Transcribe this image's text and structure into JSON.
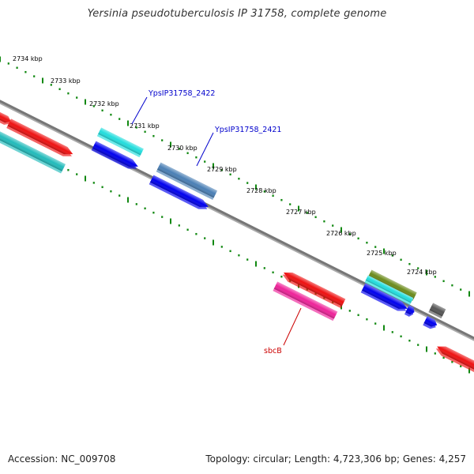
{
  "title": "Yersinia pseudotuberculosis IP 31758, complete genome",
  "footer": {
    "accession": "Accession: NC_009708",
    "topology": "Topology: circular; Length: 4,723,306 bp; Genes: 4,257"
  },
  "ticks": [
    "2734 kbp",
    "2733 kbp",
    "2732 kbp",
    "2731 kbp",
    "2730 kbp",
    "2729 kbp",
    "2728 kbp",
    "2727 kbp",
    "2726 kbp",
    "2725 kbp",
    "2724 kbp"
  ],
  "gene_labels": [
    {
      "text": "YpsIP31758_2422",
      "color": "#0000cc"
    },
    {
      "text": "YpsIP31758_2421",
      "color": "#0000cc"
    },
    {
      "text": "sbcB",
      "color": "#cc0000"
    }
  ],
  "colors": {
    "backbone": "#777777",
    "tick": "#118811",
    "cds_forward": "#ee1111",
    "cds_reverse": "#0000ee",
    "cyan": "#22dddd",
    "teal": "#22bbbb",
    "steel": "#4a7fb5",
    "pink": "#ee2299",
    "olive": "#6b8a1a",
    "gray": "#555555"
  }
}
